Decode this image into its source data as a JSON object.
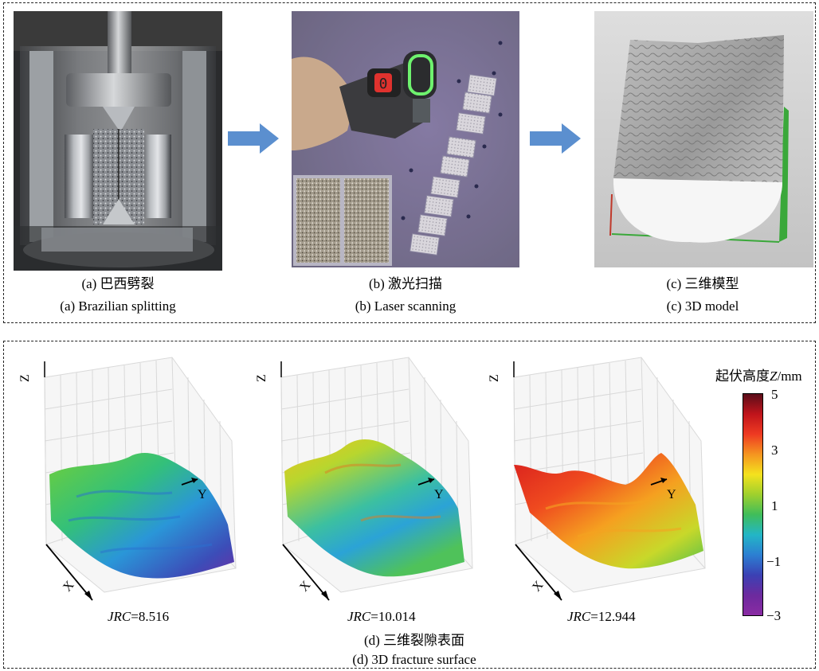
{
  "top_panel": {
    "captions": [
      {
        "zh": "(a) 巴西劈裂",
        "en": "(a) Brazilian splitting"
      },
      {
        "zh": "(b) 激光扫描",
        "en": "(b) Laser scanning"
      },
      {
        "zh": "(c) 三维模型",
        "en": "(c) 3D model"
      }
    ],
    "scanner_display": "0"
  },
  "bottom_panel": {
    "axis_labels": {
      "z": "Z",
      "y": "Y",
      "x": "X"
    },
    "jrc_label": "JRC",
    "jrc_values": [
      "=8.516",
      "=10.014",
      "=12.944"
    ],
    "caption_zh": "(d) 三维裂隙表面",
    "caption_en": "(d) 3D fracture surface",
    "colorbar": {
      "title_prefix": "起伏高度",
      "title_var": "Z",
      "title_unit": "/mm",
      "ticks": [
        "5",
        "3",
        "1",
        "−1",
        "−3"
      ],
      "colors": [
        "#5a0d1a",
        "#c0141b",
        "#ee3a22",
        "#f59520",
        "#f4e21e",
        "#9fd02d",
        "#3fbd5a",
        "#23b6c6",
        "#2c7fd2",
        "#3b41b4",
        "#6c2a9e",
        "#8a2ba3"
      ]
    }
  }
}
